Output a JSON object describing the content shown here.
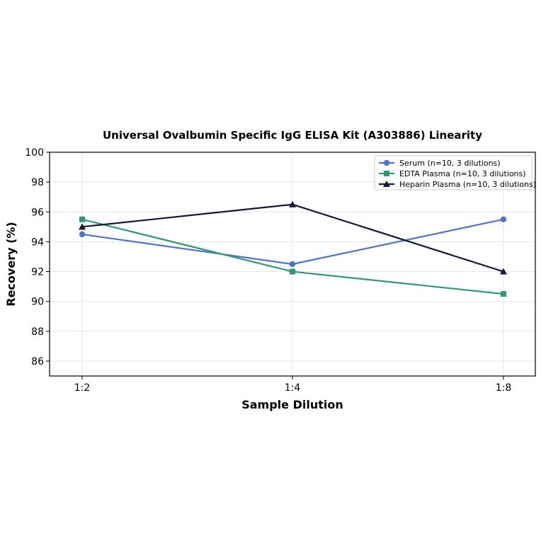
{
  "chart_data": {
    "type": "line",
    "title": "Universal Ovalbumin Specific IgG ELISA Kit (A303886) Linearity",
    "xlabel": "Sample Dilution",
    "ylabel": "Recovery (%)",
    "categories": [
      "1:2",
      "1:4",
      "1:8"
    ],
    "ylim": [
      85,
      100
    ],
    "yticks": [
      86,
      88,
      90,
      92,
      94,
      96,
      98,
      100
    ],
    "grid": true,
    "legend_position": "top-right",
    "series": [
      {
        "name": "Serum (n=10, 3 dilutions)",
        "values": [
          94.5,
          92.5,
          95.5
        ],
        "color": "#4f72d1",
        "marker": "circle"
      },
      {
        "name": "EDTA Plasma (n=10, 3 dilutions)",
        "values": [
          95.5,
          92.0,
          90.5
        ],
        "color": "#2f9a72",
        "marker": "square"
      },
      {
        "name": "Heparin Plasma (n=10, 3 dilutions)",
        "values": [
          95.0,
          96.5,
          92.0
        ],
        "color": "#121a3a",
        "marker": "triangle"
      }
    ]
  }
}
